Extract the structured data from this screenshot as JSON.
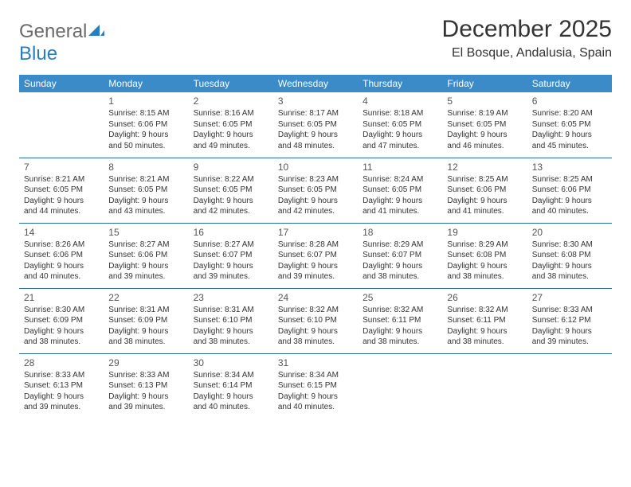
{
  "brand": {
    "text_general": "General",
    "text_blue": "Blue",
    "logo_color": "#2b7bbf",
    "text_color_gray": "#6a6a6a"
  },
  "header": {
    "title": "December 2025",
    "location": "El Bosque, Andalusia, Spain"
  },
  "colors": {
    "header_row_bg": "#3b8bc9",
    "header_row_text": "#ffffff",
    "cell_border": "#2b6ca0",
    "body_text": "#333333",
    "background": "#ffffff"
  },
  "daynames": [
    "Sunday",
    "Monday",
    "Tuesday",
    "Wednesday",
    "Thursday",
    "Friday",
    "Saturday"
  ],
  "weeks": [
    [
      null,
      {
        "n": "1",
        "sr": "Sunrise: 8:15 AM",
        "ss": "Sunset: 6:06 PM",
        "dl": "Daylight: 9 hours and 50 minutes."
      },
      {
        "n": "2",
        "sr": "Sunrise: 8:16 AM",
        "ss": "Sunset: 6:05 PM",
        "dl": "Daylight: 9 hours and 49 minutes."
      },
      {
        "n": "3",
        "sr": "Sunrise: 8:17 AM",
        "ss": "Sunset: 6:05 PM",
        "dl": "Daylight: 9 hours and 48 minutes."
      },
      {
        "n": "4",
        "sr": "Sunrise: 8:18 AM",
        "ss": "Sunset: 6:05 PM",
        "dl": "Daylight: 9 hours and 47 minutes."
      },
      {
        "n": "5",
        "sr": "Sunrise: 8:19 AM",
        "ss": "Sunset: 6:05 PM",
        "dl": "Daylight: 9 hours and 46 minutes."
      },
      {
        "n": "6",
        "sr": "Sunrise: 8:20 AM",
        "ss": "Sunset: 6:05 PM",
        "dl": "Daylight: 9 hours and 45 minutes."
      }
    ],
    [
      {
        "n": "7",
        "sr": "Sunrise: 8:21 AM",
        "ss": "Sunset: 6:05 PM",
        "dl": "Daylight: 9 hours and 44 minutes."
      },
      {
        "n": "8",
        "sr": "Sunrise: 8:21 AM",
        "ss": "Sunset: 6:05 PM",
        "dl": "Daylight: 9 hours and 43 minutes."
      },
      {
        "n": "9",
        "sr": "Sunrise: 8:22 AM",
        "ss": "Sunset: 6:05 PM",
        "dl": "Daylight: 9 hours and 42 minutes."
      },
      {
        "n": "10",
        "sr": "Sunrise: 8:23 AM",
        "ss": "Sunset: 6:05 PM",
        "dl": "Daylight: 9 hours and 42 minutes."
      },
      {
        "n": "11",
        "sr": "Sunrise: 8:24 AM",
        "ss": "Sunset: 6:05 PM",
        "dl": "Daylight: 9 hours and 41 minutes."
      },
      {
        "n": "12",
        "sr": "Sunrise: 8:25 AM",
        "ss": "Sunset: 6:06 PM",
        "dl": "Daylight: 9 hours and 41 minutes."
      },
      {
        "n": "13",
        "sr": "Sunrise: 8:25 AM",
        "ss": "Sunset: 6:06 PM",
        "dl": "Daylight: 9 hours and 40 minutes."
      }
    ],
    [
      {
        "n": "14",
        "sr": "Sunrise: 8:26 AM",
        "ss": "Sunset: 6:06 PM",
        "dl": "Daylight: 9 hours and 40 minutes."
      },
      {
        "n": "15",
        "sr": "Sunrise: 8:27 AM",
        "ss": "Sunset: 6:06 PM",
        "dl": "Daylight: 9 hours and 39 minutes."
      },
      {
        "n": "16",
        "sr": "Sunrise: 8:27 AM",
        "ss": "Sunset: 6:07 PM",
        "dl": "Daylight: 9 hours and 39 minutes."
      },
      {
        "n": "17",
        "sr": "Sunrise: 8:28 AM",
        "ss": "Sunset: 6:07 PM",
        "dl": "Daylight: 9 hours and 39 minutes."
      },
      {
        "n": "18",
        "sr": "Sunrise: 8:29 AM",
        "ss": "Sunset: 6:07 PM",
        "dl": "Daylight: 9 hours and 38 minutes."
      },
      {
        "n": "19",
        "sr": "Sunrise: 8:29 AM",
        "ss": "Sunset: 6:08 PM",
        "dl": "Daylight: 9 hours and 38 minutes."
      },
      {
        "n": "20",
        "sr": "Sunrise: 8:30 AM",
        "ss": "Sunset: 6:08 PM",
        "dl": "Daylight: 9 hours and 38 minutes."
      }
    ],
    [
      {
        "n": "21",
        "sr": "Sunrise: 8:30 AM",
        "ss": "Sunset: 6:09 PM",
        "dl": "Daylight: 9 hours and 38 minutes."
      },
      {
        "n": "22",
        "sr": "Sunrise: 8:31 AM",
        "ss": "Sunset: 6:09 PM",
        "dl": "Daylight: 9 hours and 38 minutes."
      },
      {
        "n": "23",
        "sr": "Sunrise: 8:31 AM",
        "ss": "Sunset: 6:10 PM",
        "dl": "Daylight: 9 hours and 38 minutes."
      },
      {
        "n": "24",
        "sr": "Sunrise: 8:32 AM",
        "ss": "Sunset: 6:10 PM",
        "dl": "Daylight: 9 hours and 38 minutes."
      },
      {
        "n": "25",
        "sr": "Sunrise: 8:32 AM",
        "ss": "Sunset: 6:11 PM",
        "dl": "Daylight: 9 hours and 38 minutes."
      },
      {
        "n": "26",
        "sr": "Sunrise: 8:32 AM",
        "ss": "Sunset: 6:11 PM",
        "dl": "Daylight: 9 hours and 38 minutes."
      },
      {
        "n": "27",
        "sr": "Sunrise: 8:33 AM",
        "ss": "Sunset: 6:12 PM",
        "dl": "Daylight: 9 hours and 39 minutes."
      }
    ],
    [
      {
        "n": "28",
        "sr": "Sunrise: 8:33 AM",
        "ss": "Sunset: 6:13 PM",
        "dl": "Daylight: 9 hours and 39 minutes."
      },
      {
        "n": "29",
        "sr": "Sunrise: 8:33 AM",
        "ss": "Sunset: 6:13 PM",
        "dl": "Daylight: 9 hours and 39 minutes."
      },
      {
        "n": "30",
        "sr": "Sunrise: 8:34 AM",
        "ss": "Sunset: 6:14 PM",
        "dl": "Daylight: 9 hours and 40 minutes."
      },
      {
        "n": "31",
        "sr": "Sunrise: 8:34 AM",
        "ss": "Sunset: 6:15 PM",
        "dl": "Daylight: 9 hours and 40 minutes."
      },
      null,
      null,
      null
    ]
  ]
}
